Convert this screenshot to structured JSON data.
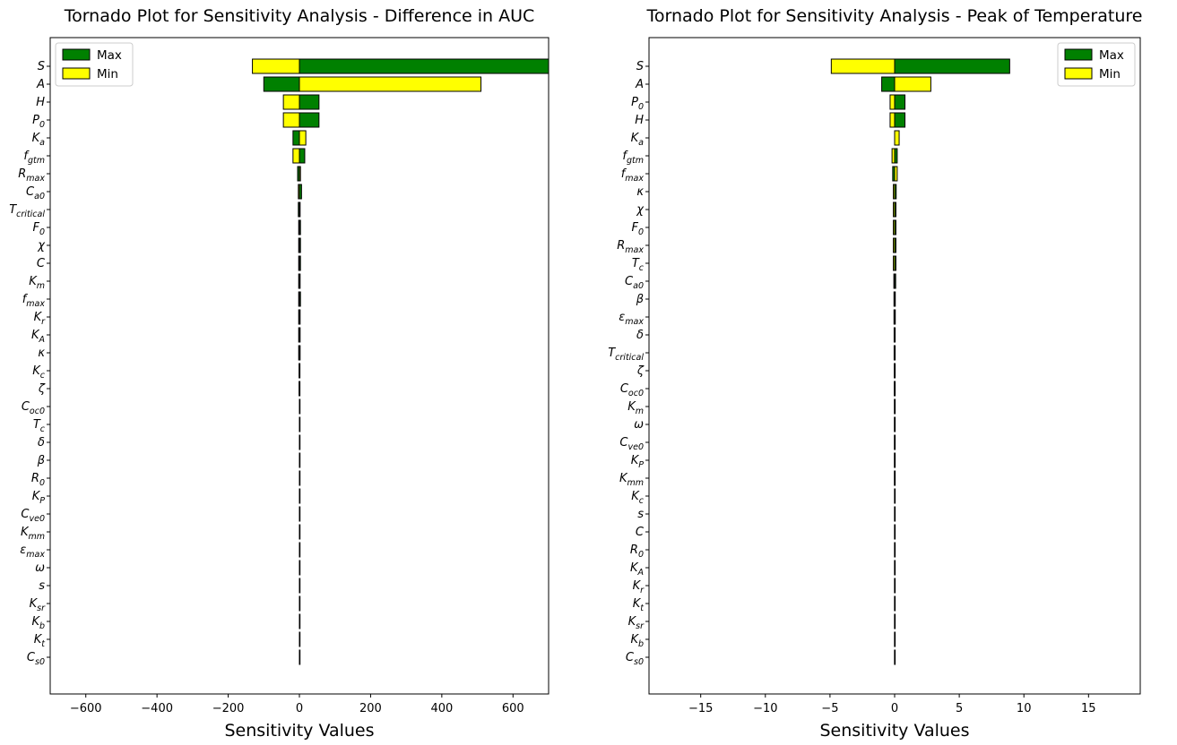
{
  "chart_data": [
    {
      "type": "bar",
      "orientation": "horizontal",
      "title": "Tornado Plot for Sensitivity Analysis - Difference in AUC",
      "xlabel": "Sensitivity Values",
      "ylabel": "",
      "xlim": [
        -700,
        700
      ],
      "xticks": [
        -600,
        -400,
        -200,
        0,
        200,
        400,
        600
      ],
      "xtick_labels": [
        "−600",
        "−400",
        "−200",
        "0",
        "200",
        "400",
        "600"
      ],
      "legend": {
        "placement": "top-left",
        "entries": [
          "Max",
          "Min"
        ]
      },
      "categories": [
        "S",
        "A",
        "H",
        "P_0",
        "K_a",
        "f_gtm",
        "R_max",
        "C_a0",
        "T_critical",
        "F_0",
        "χ",
        "C",
        "K_m",
        "f_max",
        "K_r",
        "K_A",
        "κ",
        "K_c",
        "ζ",
        "C_oc0",
        "T_c",
        "δ",
        "β",
        "R_0",
        "K_P",
        "C_ve0",
        "K_mm",
        "ε_max",
        "ω",
        "s",
        "K_sr",
        "K_b",
        "K_t",
        "C_s0"
      ],
      "series": [
        {
          "name": "Max",
          "color": "#008000",
          "values": [
            700,
            -100,
            55,
            55,
            -18,
            15,
            -5,
            6,
            -3,
            3,
            3,
            3,
            -2,
            3,
            -2,
            -2,
            -2,
            1,
            1,
            0,
            0,
            0,
            0,
            0,
            0,
            0,
            0,
            0,
            0,
            0,
            0,
            0,
            0,
            0
          ]
        },
        {
          "name": "Min",
          "color": "#ffff00",
          "values": [
            -132,
            510,
            -45,
            -45,
            18,
            -18,
            3,
            -3,
            2,
            -2,
            -2,
            -2,
            2,
            -2,
            2,
            2,
            2,
            -1,
            -1,
            0,
            0,
            0,
            0,
            0,
            0,
            0,
            0,
            0,
            0,
            0,
            0,
            0,
            0,
            0
          ]
        }
      ]
    },
    {
      "type": "bar",
      "orientation": "horizontal",
      "title": "Tornado Plot for Sensitivity Analysis - Peak of Temperature",
      "xlabel": "Sensitivity Values",
      "ylabel": "",
      "xlim": [
        -19,
        19
      ],
      "xticks": [
        -15,
        -10,
        -5,
        0,
        5,
        10,
        15
      ],
      "xtick_labels": [
        "−15",
        "−10",
        "−5",
        "0",
        "5",
        "10",
        "15"
      ],
      "legend": {
        "placement": "top-right",
        "entries": [
          "Max",
          "Min"
        ]
      },
      "categories": [
        "S",
        "A",
        "P_0",
        "H",
        "K_a",
        "f_gtm",
        "f_max",
        "κ",
        "χ",
        "F_0",
        "R_max",
        "T_c",
        "C_a0",
        "β",
        "ε_max",
        "δ",
        "T_critical",
        "ζ",
        "C_oc0",
        "K_m",
        "ω",
        "C_ve0",
        "K_P",
        "K_mm",
        "K_c",
        "s",
        "C",
        "R_0",
        "K_A",
        "K_r",
        "K_t",
        "K_sr",
        "K_b",
        "C_s0"
      ],
      "series": [
        {
          "name": "Max",
          "color": "#008000",
          "values": [
            8.9,
            -1.0,
            0.8,
            0.8,
            0.25,
            0.2,
            -0.15,
            0.12,
            0.1,
            0.1,
            0.1,
            0.1,
            0.08,
            0.05,
            0.05,
            0.04,
            0.04,
            0.03,
            0.03,
            0.02,
            0.02,
            0.02,
            0.02,
            0.02,
            0.01,
            0.01,
            0.01,
            0.01,
            0.01,
            0.01,
            0.01,
            0.01,
            0.01,
            0.01
          ]
        },
        {
          "name": "Min",
          "color": "#ffff00",
          "values": [
            -4.9,
            2.8,
            -0.35,
            -0.35,
            0.35,
            -0.2,
            0.2,
            -0.1,
            -0.1,
            -0.1,
            -0.1,
            -0.1,
            -0.06,
            -0.05,
            -0.05,
            -0.04,
            -0.04,
            -0.03,
            -0.03,
            -0.02,
            -0.02,
            -0.02,
            -0.02,
            -0.02,
            -0.01,
            -0.01,
            -0.01,
            -0.01,
            -0.01,
            -0.01,
            -0.01,
            -0.01,
            -0.01,
            -0.01
          ]
        }
      ]
    }
  ]
}
